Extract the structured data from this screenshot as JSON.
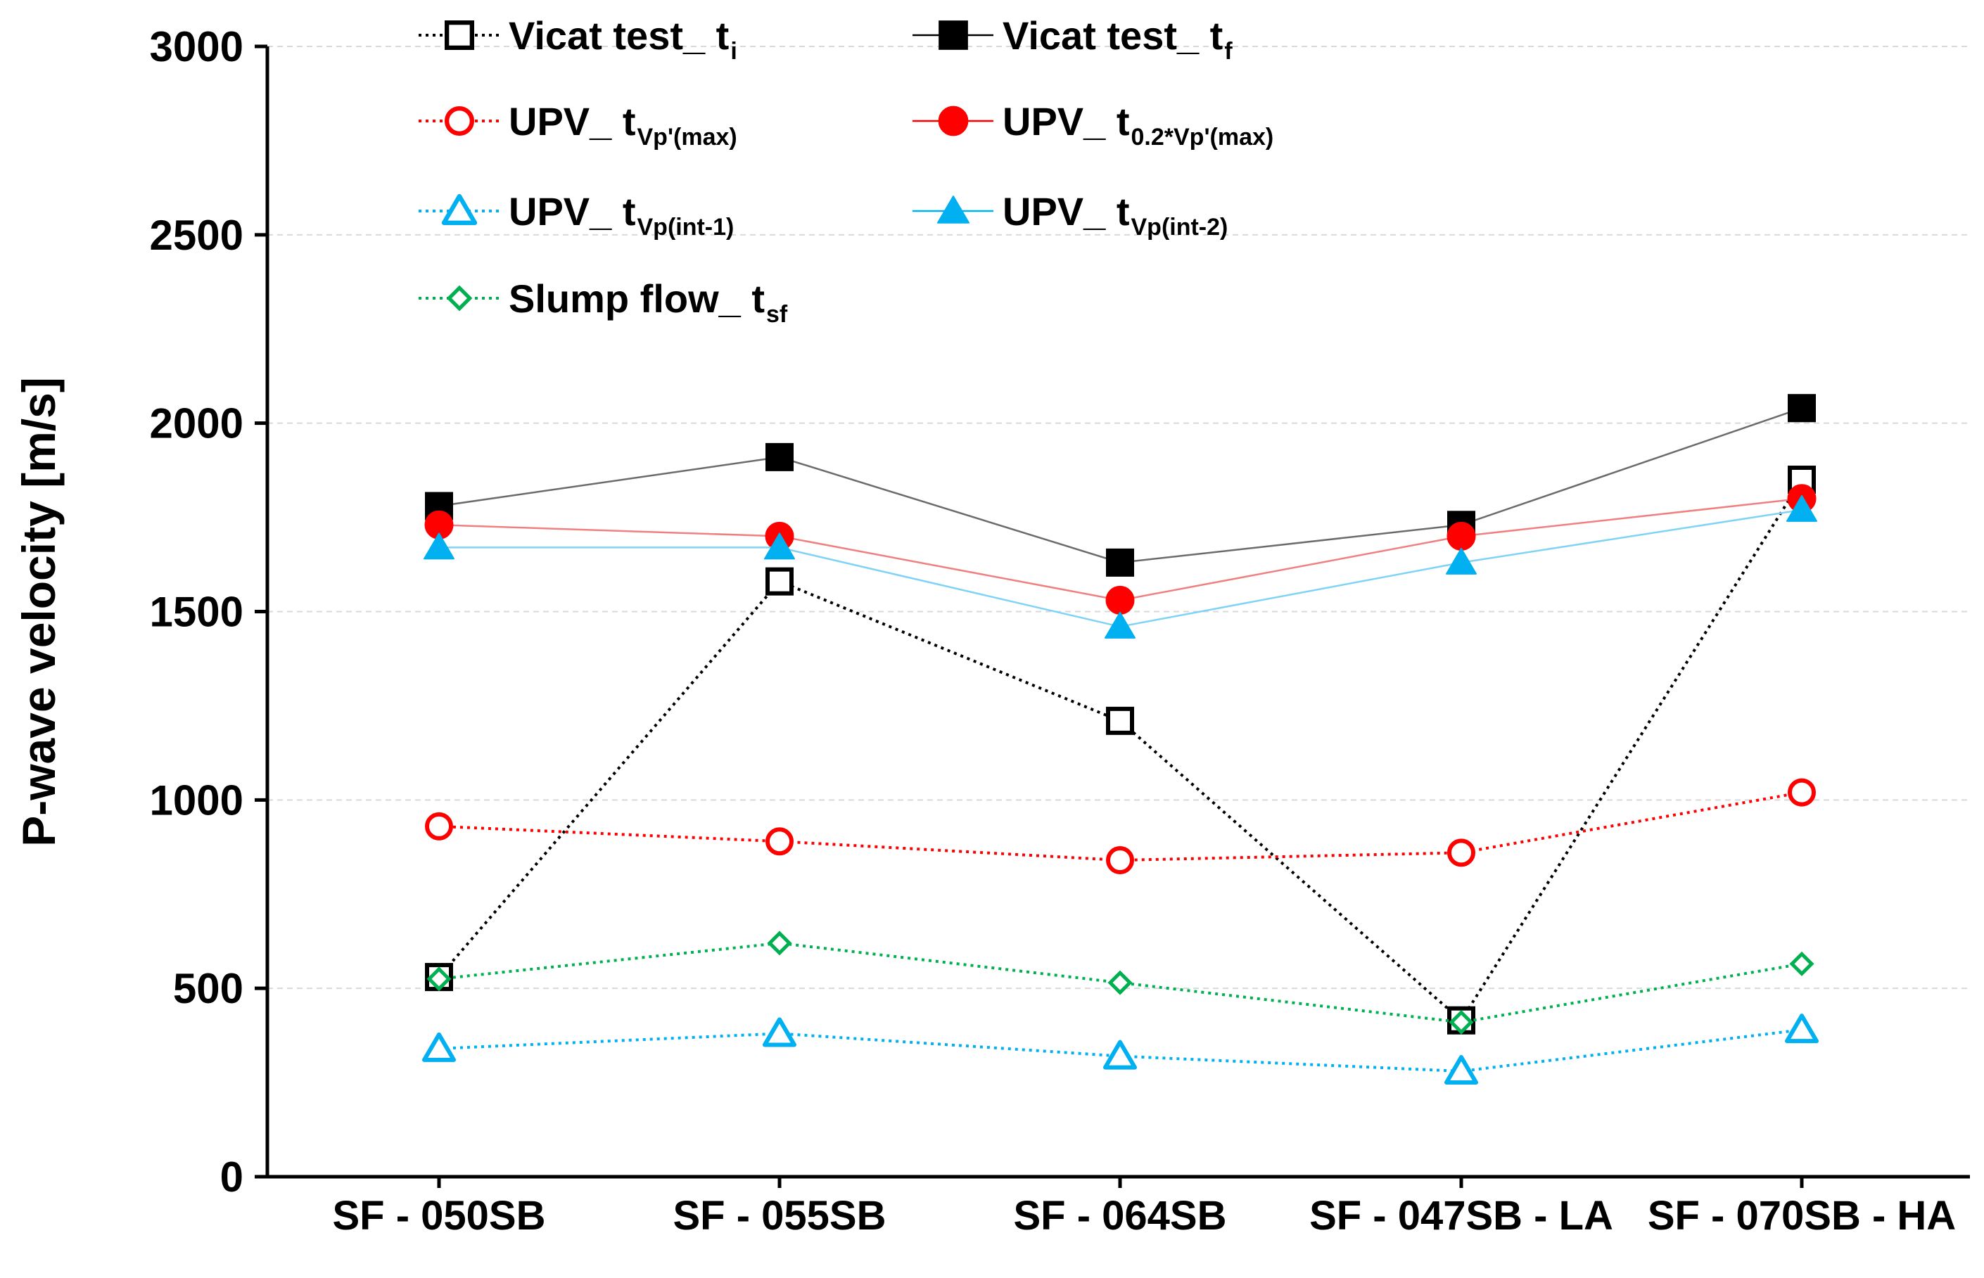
{
  "chart_data": {
    "type": "line",
    "title": "",
    "xlabel": "",
    "ylabel": "P-wave velocity [m/s]",
    "ylim": [
      0,
      3000
    ],
    "yticks": [
      0,
      500,
      1000,
      1500,
      2000,
      2500,
      3000
    ],
    "categories": [
      "SF - 050SB",
      "SF - 055SB",
      "SF - 064SB",
      "SF - 047SB - LA",
      "SF - 070SB - HA"
    ],
    "grid": "horizontal dashed",
    "legend_position": "top",
    "series": [
      {
        "name": "Vicat test_ t_i",
        "label_main": "Vicat test_ t",
        "label_sub": "i",
        "color": "#000000",
        "line": "dotted",
        "marker": "square-open",
        "values": [
          530,
          1580,
          1210,
          415,
          1850
        ]
      },
      {
        "name": "Vicat test_ t_f",
        "label_main": "Vicat test_ t",
        "label_sub": "f",
        "color": "#000000",
        "line": "solid",
        "marker": "square-filled",
        "values": [
          1780,
          1910,
          1630,
          1730,
          2040
        ]
      },
      {
        "name": "UPV_ t_Vp'(max)",
        "label_main": "UPV_ t",
        "label_sub": "Vp'(max)",
        "color": "#ff0000",
        "line": "dotted",
        "marker": "circle-open",
        "values": [
          930,
          890,
          840,
          860,
          1020
        ]
      },
      {
        "name": "UPV_ t_0.2*Vp'(max)",
        "label_main": "UPV_ t",
        "label_sub": "0.2*Vp'(max)",
        "color": "#ff0000",
        "line": "solid",
        "marker": "circle-filled",
        "values": [
          1730,
          1700,
          1530,
          1700,
          1800
        ]
      },
      {
        "name": "UPV_ t_Vp(int-1)",
        "label_main": "UPV_ t",
        "label_sub": "Vp(int-1)",
        "color": "#00b0f0",
        "line": "dotted",
        "marker": "triangle-open",
        "values": [
          340,
          380,
          320,
          280,
          390
        ]
      },
      {
        "name": "UPV_ t_Vp(int-2)",
        "label_main": "UPV_ t",
        "label_sub": "Vp(int-2)",
        "color": "#00b0f0",
        "line": "solid",
        "marker": "triangle-filled",
        "values": [
          1670,
          1670,
          1460,
          1630,
          1770
        ]
      },
      {
        "name": "Slump flow_ t_sf",
        "label_main": "Slump flow_ t",
        "label_sub": "sf",
        "color": "#00b050",
        "line": "dotted",
        "marker": "diamond-open",
        "values": [
          525,
          620,
          515,
          410,
          565
        ]
      }
    ]
  }
}
